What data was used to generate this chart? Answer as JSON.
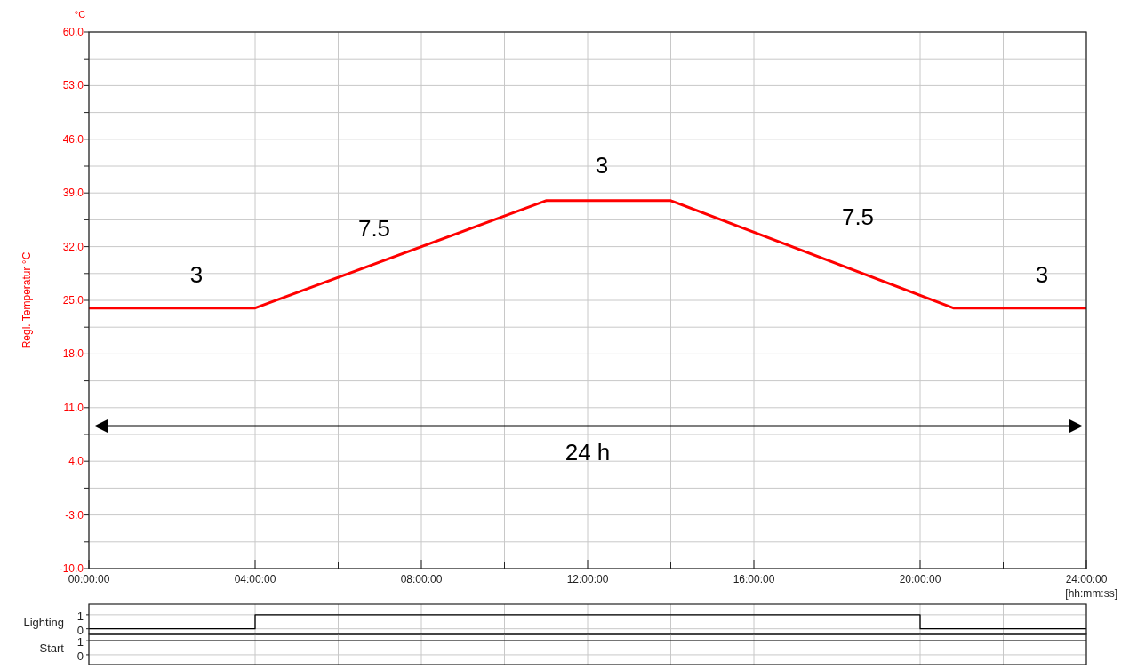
{
  "chart_data": [
    {
      "type": "line",
      "ylabel": "Regl. Temperatur °C",
      "xlabel": "[hh:mm:ss]",
      "x": [
        0,
        4,
        11,
        14,
        20.8,
        24
      ],
      "series": [
        {
          "color": "#ff0000",
          "values": [
            24,
            24,
            38,
            38,
            24,
            24
          ]
        }
      ],
      "xlim": [
        0,
        24
      ],
      "xticks": [
        {
          "value": 0,
          "label": "00:00:00"
        },
        {
          "value": 2,
          "label": null
        },
        {
          "value": 4,
          "label": "04:00:00"
        },
        {
          "value": 6,
          "label": null
        },
        {
          "value": 8,
          "label": "08:00:00"
        },
        {
          "value": 10,
          "label": null
        },
        {
          "value": 12,
          "label": "12:00:00"
        },
        {
          "value": 14,
          "label": null
        },
        {
          "value": 16,
          "label": "16:00:00"
        },
        {
          "value": 18,
          "label": null
        },
        {
          "value": 20,
          "label": "20:00:00"
        },
        {
          "value": 22,
          "label": null
        },
        {
          "value": 24,
          "label": "24:00:00"
        }
      ],
      "ylim": [
        -10,
        60
      ],
      "yticks": [
        {
          "value": -10,
          "label": "-10.0"
        },
        {
          "value": -6.5,
          "label": null
        },
        {
          "value": -3,
          "label": "-3.0"
        },
        {
          "value": 0.5,
          "label": null
        },
        {
          "value": 4,
          "label": "4.0"
        },
        {
          "value": 7.5,
          "label": null
        },
        {
          "value": 11,
          "label": "11.0"
        },
        {
          "value": 14.5,
          "label": null
        },
        {
          "value": 18,
          "label": "18.0"
        },
        {
          "value": 21.5,
          "label": null
        },
        {
          "value": 25,
          "label": "25.0"
        },
        {
          "value": 28.5,
          "label": null
        },
        {
          "value": 32,
          "label": "32.0"
        },
        {
          "value": 35.5,
          "label": null
        },
        {
          "value": 39,
          "label": "39.0"
        },
        {
          "value": 42.5,
          "label": null
        },
        {
          "value": 46,
          "label": "46.0"
        },
        {
          "value": 49.5,
          "label": null
        },
        {
          "value": 53,
          "label": "53.0"
        },
        {
          "value": 56.5,
          "label": null
        },
        {
          "value": 60,
          "label": "60.0"
        }
      ],
      "grid": true,
      "annotations": [
        "°C",
        "3",
        "7.5",
        "3",
        "7.5",
        "3"
      ],
      "ref_lines": [
        {
          "axis": "y",
          "value": 8.6,
          "label": "24 h",
          "color": "#000000"
        }
      ]
    },
    {
      "type": "step",
      "ylabel": "Lighting",
      "x": [
        0,
        4,
        20,
        24
      ],
      "series": [
        {
          "color": "#000000",
          "values": [
            0,
            1,
            0,
            0
          ]
        }
      ],
      "xlim": [
        0,
        24
      ],
      "xticks": [
        0,
        2,
        4,
        6,
        8,
        10,
        12,
        14,
        16,
        18,
        20,
        22,
        24
      ],
      "ylim": [
        -0.4,
        1.75
      ],
      "yticks": [
        {
          "value": 0,
          "label": "0"
        },
        {
          "value": 1,
          "label": "1"
        }
      ],
      "grid": true,
      "tick_labels": "y"
    },
    {
      "type": "step",
      "ylabel": "Start",
      "x": [
        0,
        24
      ],
      "series": [
        {
          "color": "#000000",
          "values": [
            1,
            1
          ]
        }
      ],
      "xlim": [
        0,
        24
      ],
      "xticks": [
        0,
        2,
        4,
        6,
        8,
        10,
        12,
        14,
        16,
        18,
        20,
        22,
        24
      ],
      "ylim": [
        -0.7,
        1.45
      ],
      "yticks": [
        {
          "value": 0,
          "label": "0"
        },
        {
          "value": 1,
          "label": "1"
        }
      ],
      "grid": true,
      "tick_labels": "y"
    }
  ]
}
